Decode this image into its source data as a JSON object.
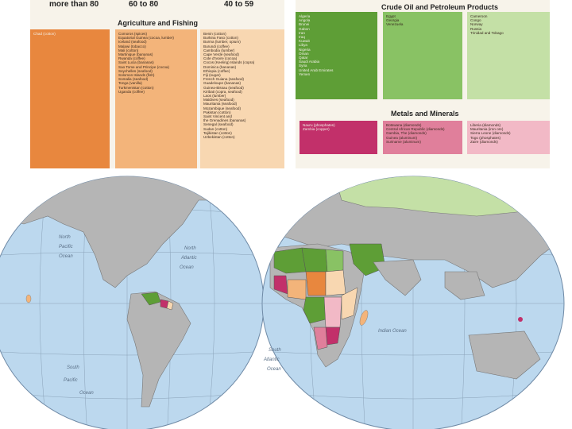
{
  "left": {
    "columns": [
      "more than 80",
      "60 to 80",
      "40 to 59"
    ],
    "section_title": "Agriculture and Fishing",
    "col1": [
      "Chad (cotton)"
    ],
    "col2": [
      "Comoros (spices)",
      "Equatorial Guinea (cocoa, lumber)",
      "Iceland (seafood)",
      "Malawi (tobacco)",
      "Mali (cotton)",
      "Martinique (bananas)",
      "Rwanda (coffee)",
      "Saint Lucia (bananas)",
      "Sao Tome and Principe (cocoa)",
      "Seychelles (seafood)",
      "Solomon Islands (fish)",
      "Somalia (seafood)",
      "Tonga (vanilla)",
      "Turkmenistan (cotton)",
      "Uganda (coffee)"
    ],
    "col3": [
      "Benin (cotton)",
      "Burkina Faso (cotton)",
      "Burma (lumber, opium)",
      "Burundi (coffee)",
      "Cambodia (lumber)",
      "Cape Verde (seafood)",
      "Cote d'Ivoire (cocoa)",
      "Cocos (Keeling) Islands (copra)",
      "Dominica (bananas)",
      "Ethiopia (coffee)",
      "Fiji (sugar)",
      "French Guiana (seafood)",
      "Guadeloupe (bananas)",
      "Guinea-Bissau (seafood)",
      "Kiribati (copra, seafood)",
      "Laos (lumber)",
      "Maldives (seafood)",
      "Mauritania (seafood)",
      "Mozambique (seafood)",
      "Pakistan (cotton)",
      "Saint Vincent and",
      "  the Grenadines (bananas)",
      "Senegal (seafood)",
      "Sudan (cotton)",
      "Tajikistan (cotton)",
      "Uzbekistan (cotton)"
    ]
  },
  "right": {
    "oil_title": "Crude Oil and Petroleum Products",
    "oil_col1": [
      "Algeria",
      "Angola",
      "Brunei",
      "Gabon",
      "Iran",
      "Iraq",
      "Kuwait",
      "Libya",
      "Nigeria",
      "Oman",
      "Qatar",
      "Saudi Arabia",
      "Syria",
      "United Arab Emirates",
      "Yemen"
    ],
    "oil_col2": [
      "Egypt",
      "Georgia",
      "Venezuela"
    ],
    "oil_col3": [
      "Cameroon",
      "Congo",
      "Norway",
      "Russia",
      "Trinidad and Tobago"
    ],
    "metals_title": "Metals and Minerals",
    "met_col1": [
      "Nauru (phosphates)",
      "Zambia (copper)"
    ],
    "met_col2": [
      "Botswana (diamonds)",
      "Central African Republic (diamonds)",
      "Gambia, The (diamonds)",
      "Guinea (aluminum)",
      "Suriname (aluminum)"
    ],
    "met_col3": [
      "Liberia (diamonds)",
      "Mauritania (iron ore)",
      "Sierra Leone (diamonds)",
      "Togo (phosphates)",
      "Zaire (diamonds)"
    ]
  },
  "map": {
    "labels": {
      "north_pacific": [
        "North",
        "Pacific",
        "Ocean"
      ],
      "north_atlantic": [
        "North",
        "Atlantic",
        "Ocean"
      ],
      "south_pacific": [
        "South",
        "Pacific",
        "Ocean"
      ],
      "south_atlantic": [
        "South",
        "Atlantic",
        "Ocean"
      ],
      "indian": "Indian Ocean"
    }
  },
  "colors": {
    "agri_dark": "#e8873e",
    "agri_mid": "#f3b47a",
    "agri_light": "#f8d7b1",
    "oil_dark": "#5e9e36",
    "oil_mid": "#89c264",
    "oil_light": "#c4e0a6",
    "met_dark": "#c2306a",
    "met_mid": "#e07f9b",
    "met_light": "#f2b9c6",
    "ocean": "#bcd8ee",
    "land": "#b5b5b5"
  }
}
